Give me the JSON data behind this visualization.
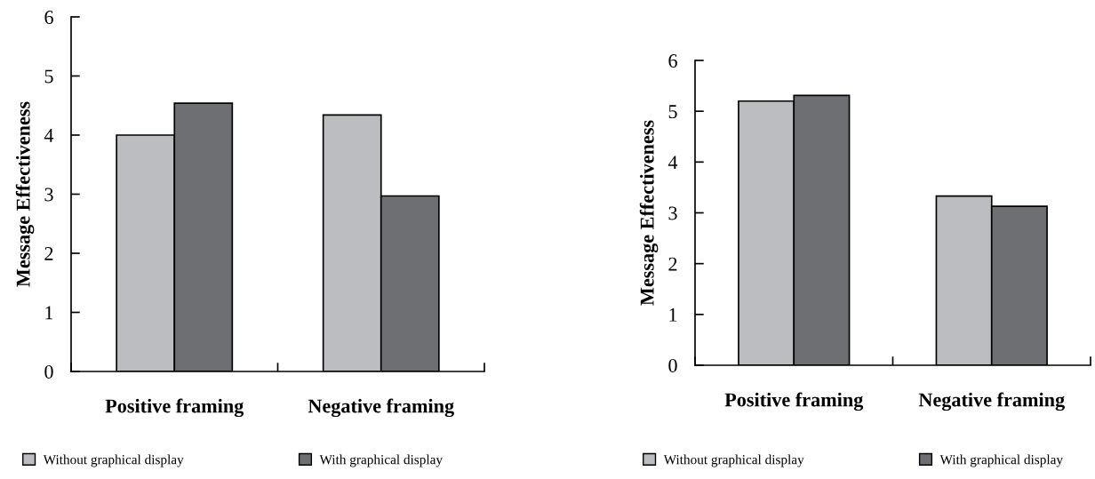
{
  "chart_data": [
    {
      "type": "bar",
      "ylabel": "Message Effectiveness",
      "categories": [
        "Positive framing",
        "Negative framing"
      ],
      "series": [
        {
          "name": "Without graphical display",
          "color": "#bcbdc1",
          "values": [
            4.0,
            4.34
          ]
        },
        {
          "name": "With graphical display",
          "color": "#6e6f73",
          "values": [
            4.54,
            2.97
          ]
        }
      ],
      "ylim": [
        0,
        6
      ],
      "yticks": [
        0,
        1,
        2,
        3,
        4,
        5,
        6
      ],
      "grid": false,
      "legend": "bottom"
    },
    {
      "type": "bar",
      "ylabel": "Message Effectiveness",
      "categories": [
        "Positive framing",
        "Negative framing"
      ],
      "series": [
        {
          "name": "Without graphical display",
          "color": "#bcbdc1",
          "values": [
            5.2,
            3.33
          ]
        },
        {
          "name": "With graphical display",
          "color": "#6e6f73",
          "values": [
            5.31,
            3.13
          ]
        }
      ],
      "ylim": [
        0,
        6
      ],
      "yticks": [
        0,
        1,
        2,
        3,
        4,
        5,
        6
      ],
      "grid": false,
      "legend": "bottom"
    }
  ]
}
